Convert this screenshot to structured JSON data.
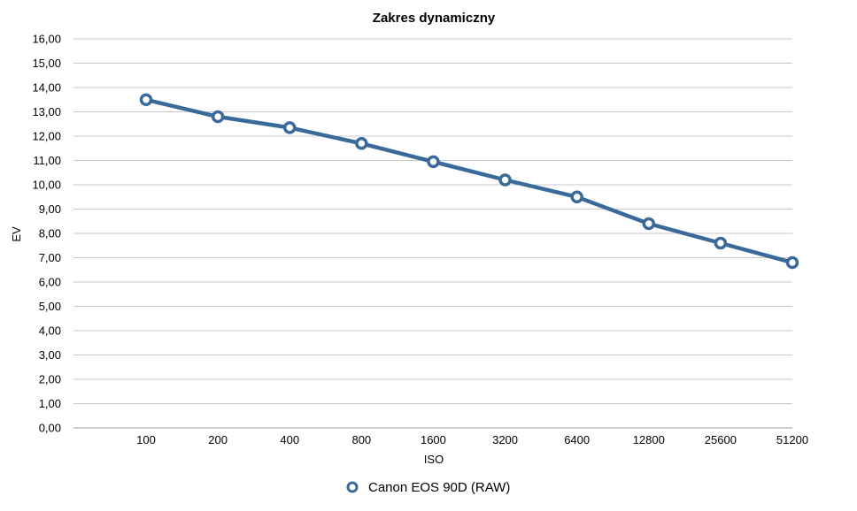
{
  "chart_data": {
    "type": "line",
    "title": "Zakres dynamiczny",
    "xlabel": "ISO",
    "ylabel": "EV",
    "categories": [
      "100",
      "200",
      "400",
      "800",
      "1600",
      "3200",
      "6400",
      "12800",
      "25600",
      "51200"
    ],
    "y_ticks": [
      "0,00",
      "1,00",
      "2,00",
      "3,00",
      "4,00",
      "5,00",
      "6,00",
      "7,00",
      "8,00",
      "9,00",
      "10,00",
      "11,00",
      "12,00",
      "13,00",
      "14,00",
      "15,00",
      "16,00"
    ],
    "ylim": [
      0,
      16
    ],
    "grid": true,
    "legend_position": "bottom",
    "series": [
      {
        "name": "Canon EOS 90D (RAW)",
        "color": "#3a6a99",
        "values": [
          13.5,
          12.8,
          12.35,
          11.7,
          10.95,
          10.2,
          9.5,
          8.4,
          7.6,
          6.8
        ]
      }
    ]
  }
}
